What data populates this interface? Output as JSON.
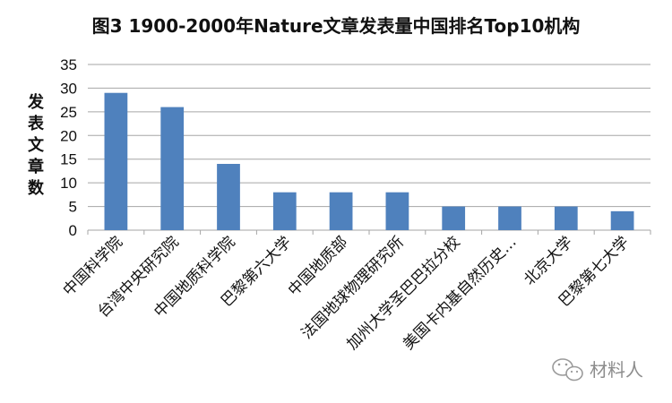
{
  "chart_data": {
    "type": "bar",
    "title": "图3 1900-2000年Nature文章发表量中国排名Top10机构",
    "ylabel": "发表文章数",
    "xlabel": "",
    "ylim": [
      0,
      35
    ],
    "yticks": [
      0,
      5,
      10,
      15,
      20,
      25,
      30,
      35
    ],
    "grid": true,
    "categories": [
      "中国科学院",
      "台湾中央研究院",
      "中国地质科学院",
      "巴黎第六大学",
      "中国地质部",
      "法国地球物理研究所",
      "加州大学圣巴巴拉分校",
      "美国卡内基自然历史…",
      "北京大学",
      "巴黎第七大学"
    ],
    "values": [
      29,
      26,
      14,
      8,
      8,
      8,
      5,
      5,
      5,
      4
    ],
    "bar_color": "#4f81bd"
  },
  "watermark": {
    "text": "材料人",
    "icon": "wechat-icon"
  }
}
